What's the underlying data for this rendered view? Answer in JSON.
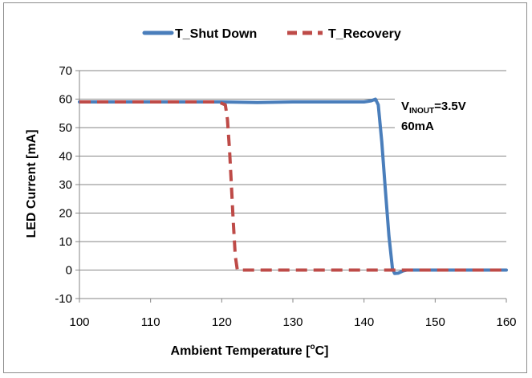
{
  "chart_data": {
    "type": "line",
    "xlabel_main": "Ambient Temperature [",
    "xlabel_sup": "o",
    "xlabel_tail": "C]",
    "ylabel": "LED Current [mA]",
    "xlim": [
      100,
      160
    ],
    "ylim": [
      -10,
      70
    ],
    "x_ticks": [
      100,
      110,
      120,
      130,
      140,
      150,
      160
    ],
    "y_ticks": [
      -10,
      0,
      10,
      20,
      30,
      40,
      50,
      60,
      70
    ],
    "grid": "horizontal",
    "legend_position": "top",
    "annotation": {
      "line1_prefix": "V",
      "line1_sub": "INOUT",
      "line1_suffix": "=3.5V",
      "line2": "60mA"
    },
    "series": [
      {
        "name": "T_Shut Down",
        "color": "#4a7ebb",
        "style": "solid",
        "x": [
          100,
          110,
          120,
          125,
          130,
          135,
          140,
          141,
          141.6,
          142,
          142.5,
          143,
          143.5,
          144,
          144.3,
          144.8,
          145.5,
          146,
          150,
          155,
          160
        ],
        "y": [
          59,
          59,
          59,
          58.8,
          59,
          59,
          59,
          59.4,
          60,
          58,
          45,
          28,
          12,
          0.5,
          -1.2,
          -1.1,
          -0.3,
          0,
          0,
          0,
          0
        ]
      },
      {
        "name": "T_Recovery",
        "color": "#be4b48",
        "style": "dashed",
        "x": [
          100,
          105,
          110,
          115,
          119.5,
          120.5,
          120.8,
          121.1,
          121.4,
          121.6,
          121.9,
          122.2,
          123,
          130,
          140,
          150,
          160
        ],
        "y": [
          59,
          59,
          59,
          59,
          59,
          58,
          53,
          42,
          28,
          18,
          5,
          0,
          0,
          0,
          0,
          0,
          0
        ]
      }
    ]
  }
}
